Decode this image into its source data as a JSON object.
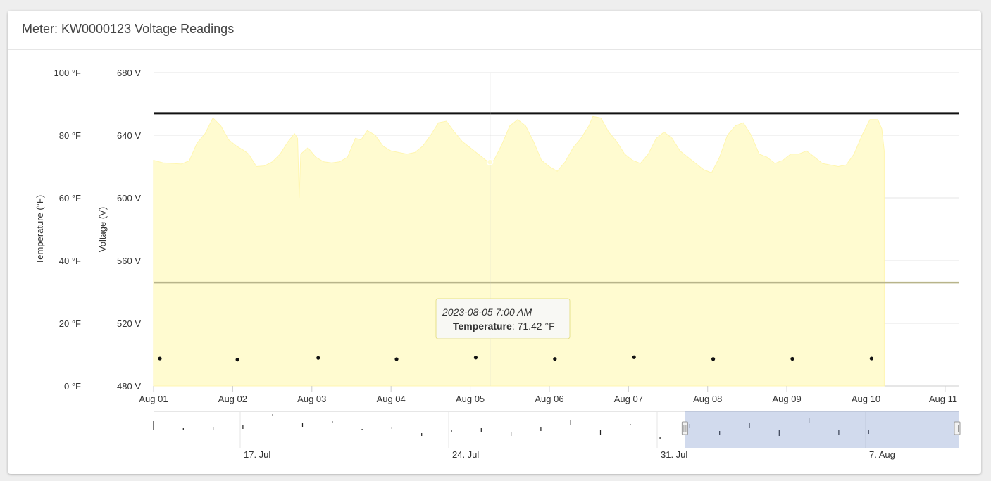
{
  "card": {
    "title": "Meter: KW0000123 Voltage Readings"
  },
  "chart_data": {
    "type": "area",
    "x_range": [
      "2023-08-01T00:00",
      "2023-08-11T04:00"
    ],
    "x_tick_labels": [
      "Aug 01",
      "Aug 02",
      "Aug 03",
      "Aug 04",
      "Aug 05",
      "Aug 06",
      "Aug 07",
      "Aug 08",
      "Aug 09",
      "Aug 10",
      "Aug 11"
    ],
    "axes": {
      "temperature": {
        "title": "Temperature (°F)",
        "range": [
          0,
          100
        ],
        "ticks": [
          "0 °F",
          "20 °F",
          "40 °F",
          "60 °F",
          "80 °F",
          "100 °F"
        ]
      },
      "voltage": {
        "title": "Voltage (V)",
        "range": [
          480,
          680
        ],
        "ticks": [
          "480 V",
          "520 V",
          "560 V",
          "600 V",
          "640 V",
          "680 V"
        ]
      }
    },
    "grid": true,
    "series": [
      {
        "name": "Temperature",
        "type": "area",
        "unit": "°F",
        "color": "#fffbd0",
        "points": [
          [
            0.0,
            72.0
          ],
          [
            0.12,
            71.2
          ],
          [
            0.25,
            71.0
          ],
          [
            0.35,
            70.8
          ],
          [
            0.45,
            71.8
          ],
          [
            0.55,
            77.5
          ],
          [
            0.65,
            80.5
          ],
          [
            0.75,
            85.5
          ],
          [
            0.85,
            83.0
          ],
          [
            0.95,
            78.5
          ],
          [
            1.05,
            76.5
          ],
          [
            1.15,
            75.0
          ],
          [
            1.2,
            74.0
          ],
          [
            1.25,
            72.0
          ],
          [
            1.3,
            70.0
          ],
          [
            1.4,
            70.2
          ],
          [
            1.5,
            71.5
          ],
          [
            1.6,
            74.0
          ],
          [
            1.7,
            78.0
          ],
          [
            1.78,
            80.5
          ],
          [
            1.82,
            79.0
          ],
          [
            1.84,
            60.0
          ],
          [
            1.86,
            74.0
          ],
          [
            1.95,
            76.0
          ],
          [
            2.05,
            73.0
          ],
          [
            2.15,
            71.5
          ],
          [
            2.25,
            71.2
          ],
          [
            2.35,
            71.5
          ],
          [
            2.45,
            73.0
          ],
          [
            2.55,
            79.0
          ],
          [
            2.62,
            78.5
          ],
          [
            2.7,
            81.5
          ],
          [
            2.8,
            80.0
          ],
          [
            2.9,
            76.5
          ],
          [
            3.0,
            75.0
          ],
          [
            3.1,
            74.5
          ],
          [
            3.2,
            74.0
          ],
          [
            3.3,
            74.5
          ],
          [
            3.4,
            76.5
          ],
          [
            3.5,
            80.0
          ],
          [
            3.6,
            84.0
          ],
          [
            3.7,
            84.5
          ],
          [
            3.8,
            81.0
          ],
          [
            3.9,
            78.0
          ],
          [
            4.0,
            76.0
          ],
          [
            4.1,
            74.0
          ],
          [
            4.2,
            72.0
          ],
          [
            4.25,
            71.4
          ],
          [
            4.3,
            72.0
          ],
          [
            4.4,
            77.0
          ],
          [
            4.5,
            83.0
          ],
          [
            4.6,
            85.0
          ],
          [
            4.7,
            83.0
          ],
          [
            4.8,
            78.0
          ],
          [
            4.9,
            72.0
          ],
          [
            5.0,
            70.0
          ],
          [
            5.1,
            68.5
          ],
          [
            5.2,
            71.5
          ],
          [
            5.3,
            76.0
          ],
          [
            5.4,
            79.0
          ],
          [
            5.5,
            83.0
          ],
          [
            5.55,
            86.0
          ],
          [
            5.65,
            85.5
          ],
          [
            5.75,
            81.0
          ],
          [
            5.85,
            78.0
          ],
          [
            5.95,
            74.0
          ],
          [
            6.05,
            72.0
          ],
          [
            6.15,
            71.0
          ],
          [
            6.25,
            74.0
          ],
          [
            6.35,
            79.0
          ],
          [
            6.45,
            81.0
          ],
          [
            6.55,
            79.0
          ],
          [
            6.65,
            75.0
          ],
          [
            6.75,
            73.0
          ],
          [
            6.85,
            71.0
          ],
          [
            6.95,
            69.0
          ],
          [
            7.05,
            68.0
          ],
          [
            7.15,
            73.0
          ],
          [
            7.25,
            80.0
          ],
          [
            7.35,
            83.0
          ],
          [
            7.45,
            84.0
          ],
          [
            7.55,
            80.0
          ],
          [
            7.65,
            74.0
          ],
          [
            7.75,
            73.0
          ],
          [
            7.85,
            71.0
          ],
          [
            7.95,
            72.0
          ],
          [
            8.05,
            74.0
          ],
          [
            8.15,
            74.0
          ],
          [
            8.25,
            75.0
          ],
          [
            8.35,
            73.0
          ],
          [
            8.45,
            71.0
          ],
          [
            8.55,
            70.5
          ],
          [
            8.65,
            70.0
          ],
          [
            8.75,
            70.5
          ],
          [
            8.85,
            74.0
          ],
          [
            8.95,
            80.0
          ],
          [
            9.05,
            85.0
          ],
          [
            9.15,
            85.0
          ],
          [
            9.2,
            82.0
          ],
          [
            9.23,
            75.0
          ]
        ]
      },
      {
        "name": "",
        "type": "scatter",
        "unit": "V",
        "color": "#111111",
        "points": [
          [
            0.08,
            497.5
          ],
          [
            1.06,
            496.8
          ],
          [
            2.08,
            497.9
          ],
          [
            3.07,
            497.1
          ],
          [
            4.07,
            498.1
          ],
          [
            5.07,
            497.2
          ],
          [
            6.07,
            498.3
          ],
          [
            7.07,
            497.2
          ],
          [
            8.07,
            497.3
          ],
          [
            9.07,
            497.5
          ]
        ]
      }
    ],
    "reference_lines": [
      {
        "axis": "voltage",
        "value": 654,
        "color": "#111111"
      },
      {
        "axis": "voltage",
        "value": 546,
        "color": "#b8b48a"
      }
    ],
    "crosshair_x": 4.25,
    "tooltip": {
      "header": "2023-08-05 7:00 AM",
      "series_label": "Temperature",
      "value_text": ": 71.42 °F"
    },
    "navigator": {
      "tick_labels": [
        "17. Jul",
        "24. Jul",
        "31. Jul",
        "7. Aug"
      ],
      "selected_range_fraction": [
        0.66,
        1.0
      ]
    }
  }
}
